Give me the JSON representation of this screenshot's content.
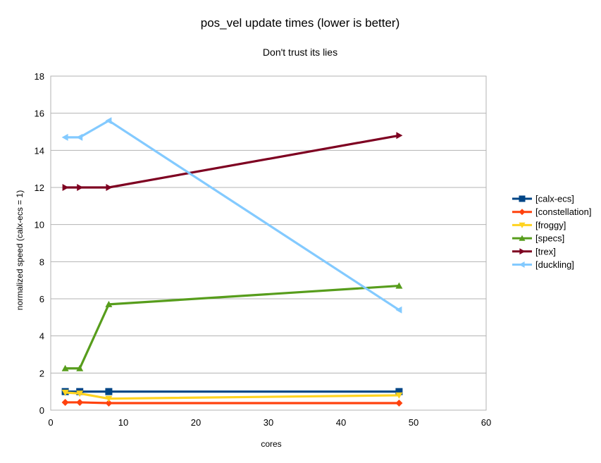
{
  "chart_data": {
    "type": "line",
    "title": "pos_vel update times (lower is better)",
    "subtitle": "Don't trust its lies",
    "xlabel": "cores",
    "ylabel": "normalized speed (calx-ecs = 1)",
    "xlim": [
      0,
      60
    ],
    "ylim": [
      0,
      18
    ],
    "xticks": [
      0,
      10,
      20,
      30,
      40,
      50,
      60
    ],
    "yticks": [
      0,
      2,
      4,
      6,
      8,
      10,
      12,
      14,
      16,
      18
    ],
    "grid": "horizontal",
    "legend_position": "right",
    "x": [
      2,
      4,
      8,
      48
    ],
    "series": [
      {
        "name": "[calx-ecs]",
        "color": "#004586",
        "marker": "square",
        "values": [
          1,
          1,
          1,
          1
        ]
      },
      {
        "name": "[constellation]",
        "color": "#ff420e",
        "marker": "diamond",
        "values": [
          0.42,
          0.42,
          0.38,
          0.38
        ]
      },
      {
        "name": "[froggy]",
        "color": "#ffd320",
        "marker": "triangle-down",
        "values": [
          0.95,
          0.9,
          0.62,
          0.8
        ]
      },
      {
        "name": "[specs]",
        "color": "#579d1c",
        "marker": "triangle-up",
        "values": [
          2.25,
          2.25,
          5.7,
          6.7
        ]
      },
      {
        "name": "[trex]",
        "color": "#7e0021",
        "marker": "triangle-right",
        "values": [
          12,
          12,
          12,
          14.8
        ]
      },
      {
        "name": "[duckling]",
        "color": "#83caff",
        "marker": "triangle-left",
        "values": [
          14.7,
          14.7,
          15.6,
          5.4
        ]
      }
    ]
  }
}
